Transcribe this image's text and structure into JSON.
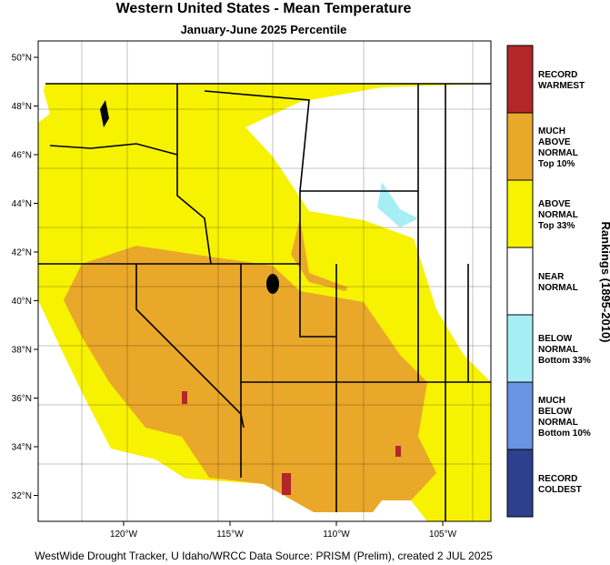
{
  "title": "Western United States - Mean Temperature",
  "subtitle": "January-June 2025 Percentile",
  "map": {
    "lat_labels": [
      "50°N",
      "48°N",
      "46°N",
      "44°N",
      "42°N",
      "40°N",
      "38°N",
      "36°N",
      "34°N",
      "32°N"
    ],
    "lon_labels": [
      "120°W",
      "115°W",
      "110°W",
      "105°W"
    ]
  },
  "legend": {
    "title": "Rankings (1895-2010)",
    "items": [
      {
        "lines": [
          "RECORD",
          "WARMEST"
        ],
        "color": "#b3262a"
      },
      {
        "lines": [
          "MUCH",
          "ABOVE",
          "NORMAL",
          "Top 10%"
        ],
        "color": "#e9a82a"
      },
      {
        "lines": [
          "ABOVE",
          "NORMAL",
          "Top 33%"
        ],
        "color": "#f7f200"
      },
      {
        "lines": [
          "NEAR",
          "NORMAL"
        ],
        "color": "#ffffff"
      },
      {
        "lines": [
          "BELOW",
          "NORMAL",
          "Bottom 33%"
        ],
        "color": "#a6eef6"
      },
      {
        "lines": [
          "MUCH",
          "BELOW",
          "NORMAL",
          "Bottom 10%"
        ],
        "color": "#6b93e3"
      },
      {
        "lines": [
          "RECORD",
          "COLDEST"
        ],
        "color": "#2d3f8f"
      }
    ]
  },
  "footer": "WestWide Drought Tracker, U Idaho/WRCC Data Source: PRISM (Prelim), created  2 JUL 2025"
}
